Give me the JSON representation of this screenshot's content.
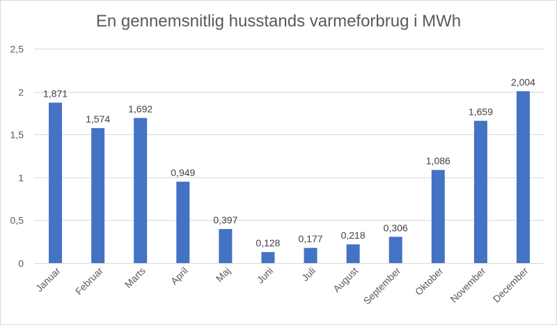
{
  "chart_data": {
    "type": "bar",
    "title": "En gennemsnitlig husstands varmeforbrug i MWh",
    "xlabel": "",
    "ylabel": "",
    "ylim": [
      0,
      2.5
    ],
    "yticks": [
      "0",
      "0,5",
      "1",
      "1,5",
      "2",
      "2,5"
    ],
    "yticks_values": [
      0,
      0.5,
      1,
      1.5,
      2,
      2.5
    ],
    "grid": true,
    "bar_color": "#4472c4",
    "categories": [
      "Januar",
      "Februar",
      "Marts",
      "April",
      "Maj",
      "Juni",
      "Juli",
      "August",
      "September",
      "Oktober",
      "November",
      "December"
    ],
    "values": [
      1.871,
      1.574,
      1.692,
      0.949,
      0.397,
      0.128,
      0.177,
      0.218,
      0.306,
      1.086,
      1.659,
      2.004
    ],
    "data_labels": [
      "1,871",
      "1,574",
      "1,692",
      "0,949",
      "0,397",
      "0,128",
      "0,177",
      "0,218",
      "0,306",
      "1,086",
      "1,659",
      "2,004"
    ]
  }
}
